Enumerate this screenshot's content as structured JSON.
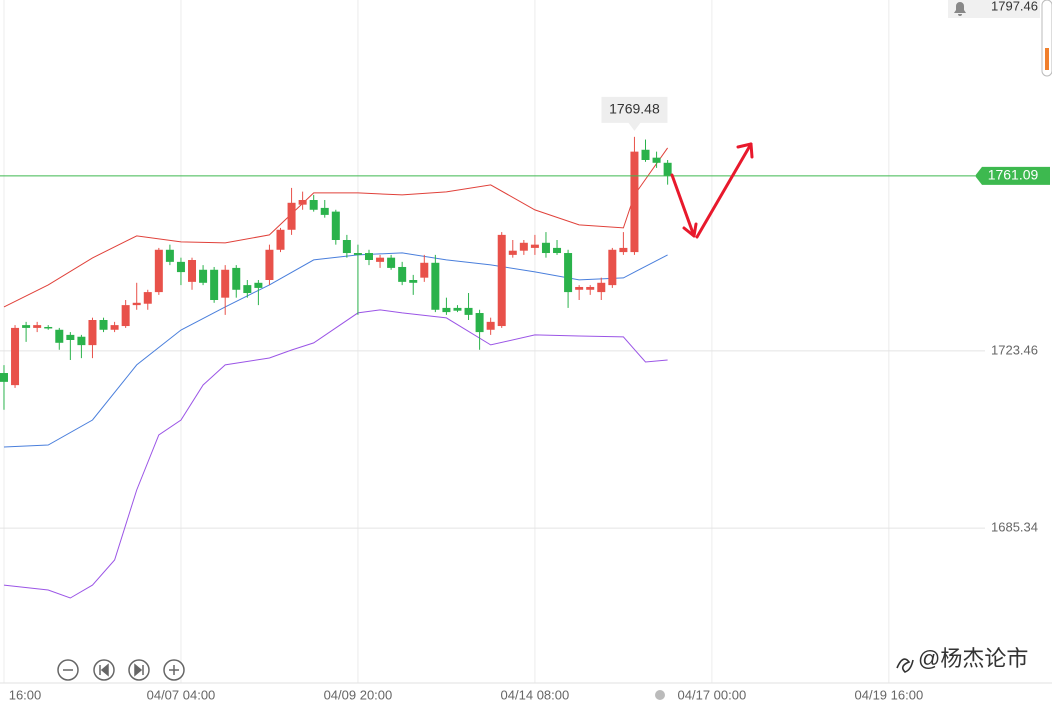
{
  "chart_data": {
    "type": "candlestick",
    "x": [
      0,
      1,
      2,
      3,
      4,
      5,
      6,
      7,
      8,
      9,
      10,
      11,
      12,
      13,
      14,
      15,
      16,
      17,
      18,
      19,
      20,
      21,
      22,
      23,
      24,
      25,
      26,
      27,
      28,
      29,
      30,
      31,
      32,
      33,
      34,
      35,
      36,
      37,
      38,
      39,
      40,
      41,
      42,
      43,
      44,
      45,
      46,
      47,
      48,
      49,
      50,
      51,
      52,
      53,
      54,
      55,
      56,
      57,
      58,
      59,
      60
    ],
    "open": [
      1718.7,
      1716.1,
      1729.0,
      1728.4,
      1728.6,
      1728.0,
      1726.9,
      1726.5,
      1724.7,
      1730.1,
      1728.0,
      1728.8,
      1733.3,
      1733.6,
      1736.1,
      1745.2,
      1742.6,
      1738.3,
      1740.9,
      1740.9,
      1734.9,
      1741.3,
      1737.6,
      1738.1,
      1738.7,
      1745.2,
      1749.5,
      1754.9,
      1755.9,
      1754.2,
      1753.4,
      1747.3,
      1744.5,
      1744.5,
      1742.6,
      1743.5,
      1741.5,
      1738.7,
      1739.2,
      1742.4,
      1732.7,
      1732.7,
      1732.7,
      1731.6,
      1728.0,
      1728.8,
      1744.1,
      1745.0,
      1745.6,
      1746.7,
      1745.6,
      1744.5,
      1736.6,
      1736.6,
      1736.1,
      1737.6,
      1744.7,
      1744.7,
      1766.7,
      1765.0,
      1763.9
    ],
    "high": [
      1720.4,
      1729.0,
      1729.7,
      1729.7,
      1729.0,
      1728.4,
      1727.5,
      1726.9,
      1730.6,
      1730.6,
      1729.7,
      1734.4,
      1738.1,
      1736.6,
      1745.6,
      1746.3,
      1743.5,
      1743.5,
      1741.9,
      1741.5,
      1741.9,
      1741.9,
      1738.7,
      1738.7,
      1746.3,
      1749.9,
      1758.5,
      1757.7,
      1757.0,
      1755.9,
      1753.8,
      1748.4,
      1746.3,
      1745.2,
      1744.1,
      1744.1,
      1742.6,
      1739.8,
      1744.1,
      1744.1,
      1734.9,
      1733.3,
      1735.9,
      1732.3,
      1730.6,
      1749.0,
      1747.3,
      1747.3,
      1748.4,
      1749.0,
      1747.3,
      1745.2,
      1737.6,
      1737.6,
      1739.2,
      1745.6,
      1749.0,
      1769.48,
      1768.9,
      1766.3,
      1764.5
    ],
    "low": [
      1710.8,
      1715.5,
      1725.4,
      1727.5,
      1728.0,
      1723.7,
      1721.5,
      1721.9,
      1721.9,
      1727.5,
      1727.5,
      1728.4,
      1732.3,
      1732.3,
      1735.5,
      1741.9,
      1737.6,
      1736.6,
      1737.6,
      1733.8,
      1731.2,
      1734.9,
      1734.9,
      1733.3,
      1737.6,
      1744.7,
      1748.4,
      1753.8,
      1753.4,
      1752.1,
      1746.3,
      1743.5,
      1731.2,
      1741.9,
      1741.3,
      1740.9,
      1737.6,
      1735.5,
      1738.3,
      1731.8,
      1731.2,
      1731.8,
      1730.1,
      1723.7,
      1726.9,
      1728.4,
      1743.5,
      1744.1,
      1744.1,
      1743.5,
      1744.1,
      1732.7,
      1734.4,
      1735.5,
      1734.4,
      1737.0,
      1744.1,
      1744.1,
      1764.1,
      1762.8,
      1759.2
    ],
    "close": [
      1716.8,
      1728.4,
      1728.4,
      1729.0,
      1728.4,
      1725.2,
      1725.8,
      1724.7,
      1730.1,
      1728.0,
      1729.0,
      1733.3,
      1733.8,
      1736.1,
      1745.2,
      1742.6,
      1740.4,
      1743.0,
      1738.1,
      1734.4,
      1740.9,
      1736.6,
      1735.9,
      1737.0,
      1745.2,
      1749.5,
      1755.3,
      1755.9,
      1753.8,
      1752.7,
      1747.3,
      1744.5,
      1744.1,
      1743.0,
      1743.5,
      1741.3,
      1738.3,
      1738.1,
      1742.4,
      1732.3,
      1731.8,
      1732.1,
      1731.2,
      1727.5,
      1729.7,
      1748.4,
      1745.0,
      1746.7,
      1746.3,
      1744.5,
      1744.5,
      1736.1,
      1737.2,
      1737.2,
      1738.1,
      1745.2,
      1745.6,
      1766.3,
      1764.5,
      1763.9,
      1761.09
    ],
    "up_color": "#e8514a",
    "down_color": "#2ab24b",
    "last_price_color": "#3db94f",
    "bands": [
      {
        "color": "#e0413a",
        "x": [
          0,
          4,
          8,
          12,
          16,
          20,
          24,
          28,
          32,
          36,
          40,
          44,
          48,
          52,
          56,
          57,
          60
        ],
        "values": [
          1732.91,
          1737.64,
          1743.45,
          1748.18,
          1746.89,
          1746.68,
          1748.4,
          1757.43,
          1757.43,
          1757.0,
          1757.65,
          1759.15,
          1753.78,
          1750.55,
          1749.9,
          1757.0,
          1767.11
        ]
      },
      {
        "color": "#4a7fdc",
        "x": [
          0,
          4,
          8,
          12,
          16,
          20,
          24,
          28,
          32,
          36,
          40,
          44,
          48,
          52,
          56,
          60
        ],
        "values": [
          1702.8,
          1703.23,
          1708.61,
          1720.44,
          1727.96,
          1732.91,
          1737.64,
          1743.02,
          1744.1,
          1744.53,
          1743.02,
          1741.95,
          1740.44,
          1738.72,
          1739.15,
          1744.1
        ]
      },
      {
        "color": "#9b55e6",
        "x": [
          0,
          4,
          6,
          8,
          10,
          12,
          14,
          16,
          18,
          20,
          24,
          26,
          28,
          32,
          34,
          36,
          40,
          44,
          48,
          52,
          56,
          58,
          60
        ],
        "values": [
          1673.11,
          1672.04,
          1670.32,
          1673.11,
          1678.49,
          1693.55,
          1705.38,
          1708.61,
          1716.13,
          1720.44,
          1721.94,
          1723.66,
          1725.17,
          1731.62,
          1732.27,
          1731.62,
          1730.55,
          1724.74,
          1726.89,
          1726.67,
          1726.46,
          1721.08,
          1721.51
        ]
      }
    ],
    "xlim": [
      -0.36,
      94.75
    ],
    "xticks": [
      {
        "value": 0,
        "label": "16:00"
      },
      {
        "value": 16,
        "label": "04/07 04:00"
      },
      {
        "value": 32,
        "label": "04/09 20:00"
      },
      {
        "value": 48,
        "label": "04/14 08:00"
      },
      {
        "value": 64,
        "label": "04/17 00:00"
      },
      {
        "value": 80,
        "label": "04/19 16:00"
      }
    ],
    "ylim": [
      1652.7,
      1798.9
    ],
    "yticks": [
      1685.34,
      1723.46,
      1797.46
    ],
    "grid": true
  },
  "watermark": "@杨杰论市"
}
